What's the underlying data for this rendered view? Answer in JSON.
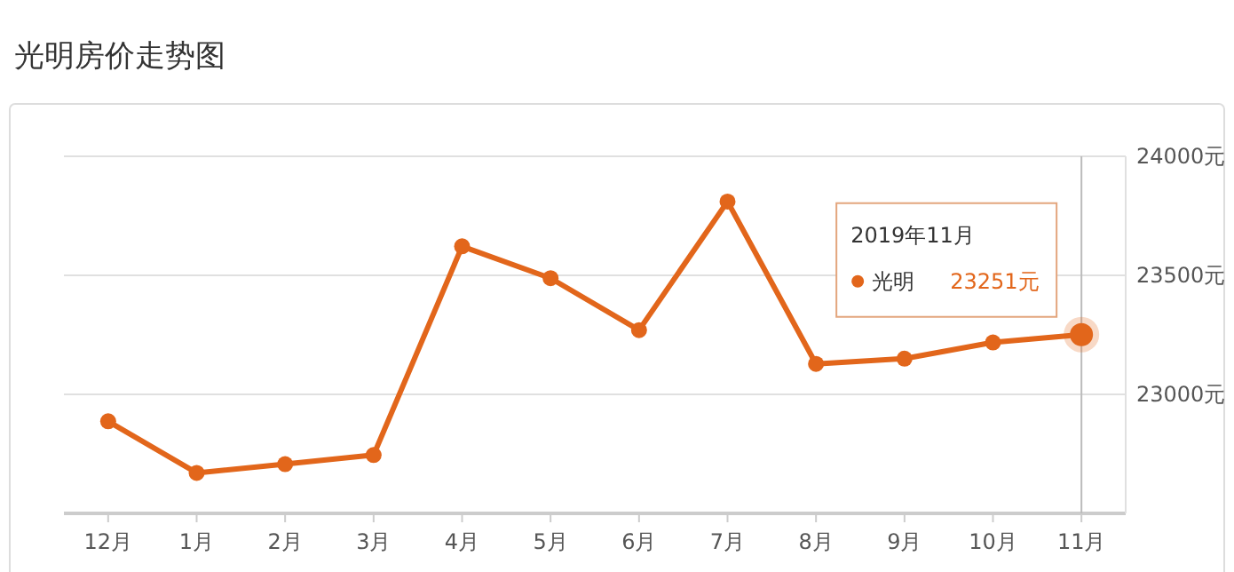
{
  "chart_data": {
    "type": "line",
    "title": "光明房价走势图",
    "categories": [
      "12月",
      "1月",
      "2月",
      "3月",
      "4月",
      "5月",
      "6月",
      "7月",
      "8月",
      "9月",
      "10月",
      "11月"
    ],
    "series": [
      {
        "name": "光明",
        "color": "#e2661b",
        "values": [
          22887,
          22670,
          22707,
          22745,
          23622,
          23488,
          23270,
          23810,
          23128,
          23150,
          23218,
          23251
        ]
      }
    ],
    "ylim": [
      22500,
      24000
    ],
    "yticks": [
      {
        "value": 22500,
        "label": null
      },
      {
        "value": 23000,
        "label": "23000元"
      },
      {
        "value": 23500,
        "label": "23500元"
      },
      {
        "value": 24000,
        "label": "24000元"
      }
    ],
    "grid": "y",
    "legend": "top right",
    "marker": "circle",
    "line_style": "solid",
    "ref_lines": [
      {
        "axis": "x",
        "value": "11月",
        "color": "#bbbbbb"
      }
    ],
    "value_labels": [
      null,
      null,
      null,
      null,
      null,
      null,
      null,
      null,
      null,
      null,
      null,
      "23251元"
    ],
    "annotations": [
      "2019年11月"
    ]
  }
}
